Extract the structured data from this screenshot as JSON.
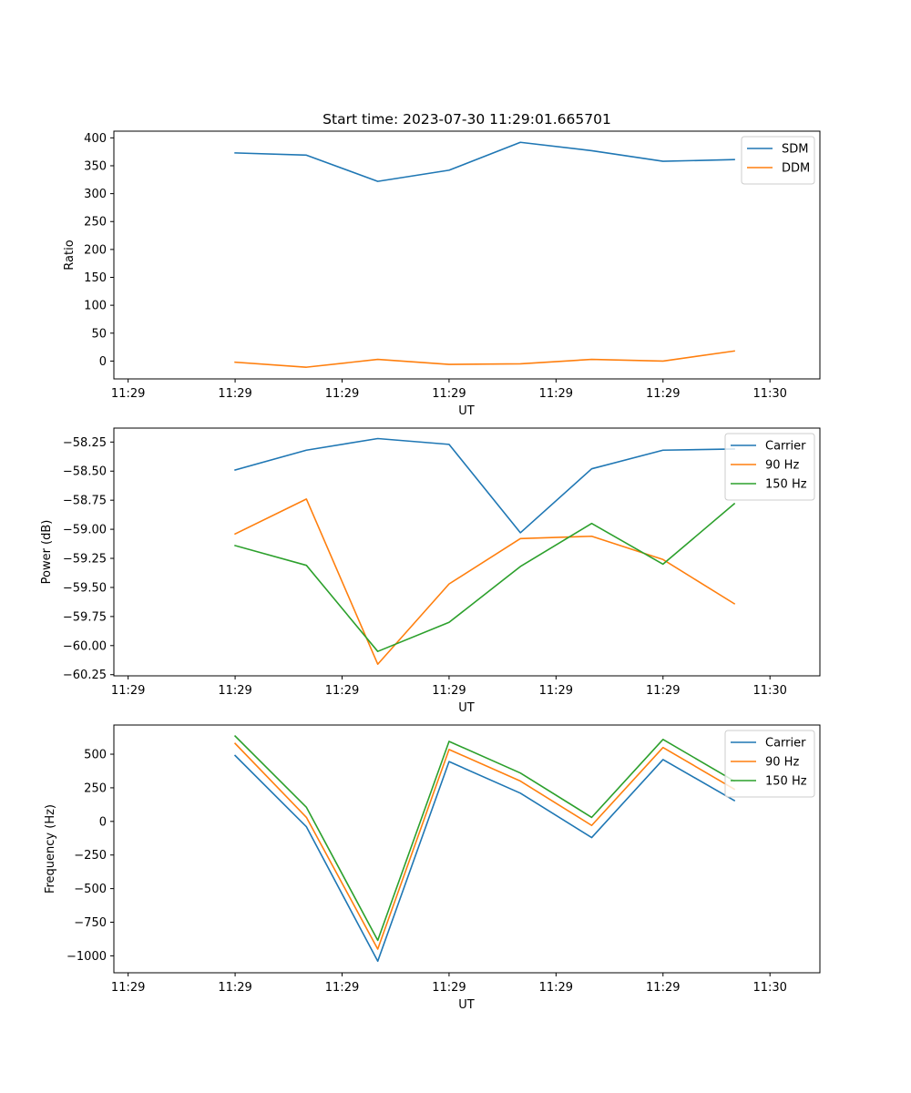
{
  "colors": {
    "blue": "#1f77b4",
    "orange": "#ff7f0e",
    "green": "#2ca02c"
  },
  "chart_data": [
    {
      "type": "line",
      "title": "Start time: 2023-07-30 11:29:01.665701",
      "xlabel": "UT",
      "ylabel": "Ratio",
      "x": [
        1,
        2,
        3,
        4,
        5,
        6,
        7,
        8
      ],
      "xlim": [
        -0.7,
        9.2
      ],
      "xticks": [
        -0.5,
        1.0,
        2.5,
        4.0,
        5.5,
        7.0,
        8.5
      ],
      "xtick_labels": [
        "11:29",
        "11:29",
        "11:29",
        "11:29",
        "11:29",
        "11:29",
        "11:30"
      ],
      "ylim": [
        -32,
        412
      ],
      "yticks": [
        0,
        50,
        100,
        150,
        200,
        250,
        300,
        350,
        400
      ],
      "ytick_labels": [
        "0",
        "50",
        "100",
        "150",
        "200",
        "250",
        "300",
        "350",
        "400"
      ],
      "legend_position": "top-right",
      "series": [
        {
          "name": "SDM",
          "color": "#1f77b4",
          "values": [
            373,
            369,
            322,
            342,
            392,
            377,
            358,
            361
          ]
        },
        {
          "name": "DDM",
          "color": "#ff7f0e",
          "values": [
            -2,
            -11,
            3,
            -6,
            -5,
            3,
            0,
            18
          ]
        }
      ]
    },
    {
      "type": "line",
      "title": "",
      "xlabel": "UT",
      "ylabel": "Power (dB)",
      "x": [
        1,
        2,
        3,
        4,
        5,
        6,
        7,
        8
      ],
      "xlim": [
        -0.7,
        9.2
      ],
      "xticks": [
        -0.5,
        1.0,
        2.5,
        4.0,
        5.5,
        7.0,
        8.5
      ],
      "xtick_labels": [
        "11:29",
        "11:29",
        "11:29",
        "11:29",
        "11:29",
        "11:29",
        "11:30"
      ],
      "ylim": [
        -60.26,
        -58.13
      ],
      "yticks": [
        -60.25,
        -60.0,
        -59.75,
        -59.5,
        -59.25,
        -59.0,
        -58.75,
        -58.5,
        -58.25
      ],
      "ytick_labels": [
        "−60.25",
        "−60.00",
        "−59.75",
        "−59.50",
        "−59.25",
        "−59.00",
        "−58.75",
        "−58.50",
        "−58.25"
      ],
      "legend_position": "top-right",
      "series": [
        {
          "name": "Carrier",
          "color": "#1f77b4",
          "values": [
            -58.49,
            -58.32,
            -58.22,
            -58.27,
            -59.03,
            -58.48,
            -58.32,
            -58.31
          ]
        },
        {
          "name": "90 Hz",
          "color": "#ff7f0e",
          "values": [
            -59.04,
            -58.74,
            -60.16,
            -59.47,
            -59.08,
            -59.06,
            -59.26,
            -59.64
          ]
        },
        {
          "name": "150 Hz",
          "color": "#2ca02c",
          "values": [
            -59.14,
            -59.31,
            -60.05,
            -59.8,
            -59.32,
            -58.95,
            -59.3,
            -58.78
          ]
        }
      ]
    },
    {
      "type": "line",
      "title": "",
      "xlabel": "UT",
      "ylabel": "Frequency (Hz)",
      "x": [
        1,
        2,
        3,
        4,
        5,
        6,
        7,
        8
      ],
      "xlim": [
        -0.7,
        9.2
      ],
      "xticks": [
        -0.5,
        1.0,
        2.5,
        4.0,
        5.5,
        7.0,
        8.5
      ],
      "xtick_labels": [
        "11:29",
        "11:29",
        "11:29",
        "11:29",
        "11:29",
        "11:29",
        "11:30"
      ],
      "ylim": [
        -1126,
        717
      ],
      "yticks": [
        -1000,
        -750,
        -500,
        -250,
        0,
        250,
        500
      ],
      "ytick_labels": [
        "−1000",
        "−750",
        "−500",
        "−250",
        "0",
        "250",
        "500"
      ],
      "legend_position": "top-right",
      "series": [
        {
          "name": "Carrier",
          "color": "#1f77b4",
          "values": [
            490,
            -40,
            -1040,
            445,
            210,
            -120,
            460,
            155
          ]
        },
        {
          "name": "90 Hz",
          "color": "#ff7f0e",
          "values": [
            580,
            30,
            -950,
            535,
            300,
            -30,
            550,
            240
          ]
        },
        {
          "name": "150 Hz",
          "color": "#2ca02c",
          "values": [
            635,
            105,
            -885,
            595,
            360,
            30,
            610,
            300
          ]
        }
      ]
    }
  ]
}
